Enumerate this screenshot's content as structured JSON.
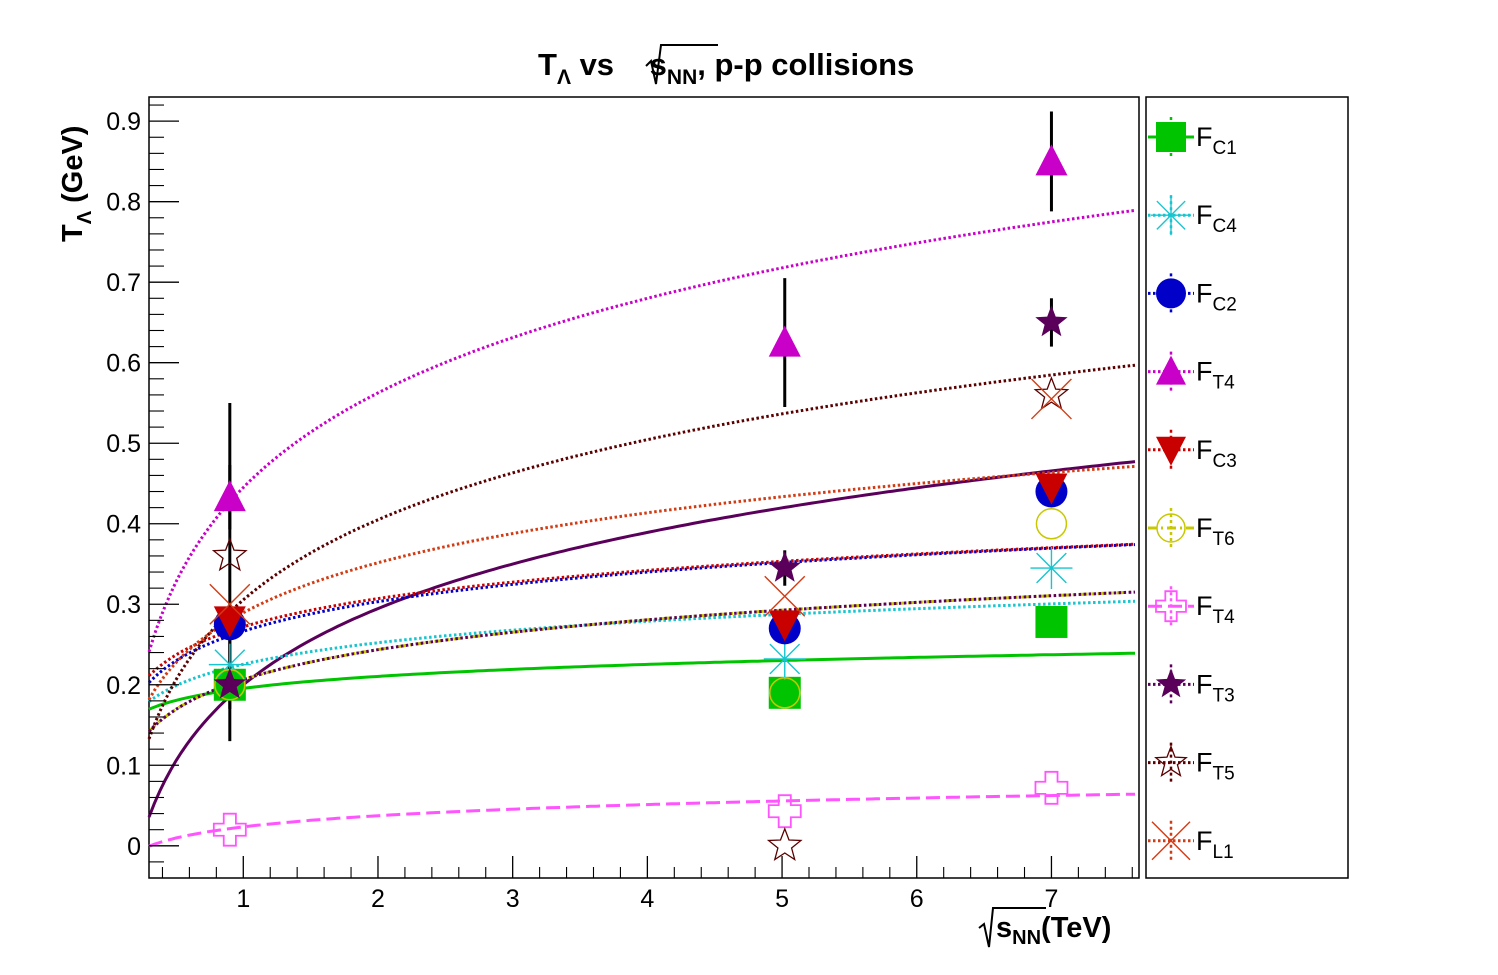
{
  "chart_data": {
    "type": "scatter",
    "title": {
      "main": "T",
      "main_sub": "Λ",
      "mid": " vs ",
      "root_var": "s",
      "root_sub": "NN",
      "tail": ", p-p collisions"
    },
    "xlabel": {
      "root_var": "s",
      "root_sub": "NN",
      "unit": "(TeV)"
    },
    "ylabel": {
      "main": "T",
      "sub": "Λ",
      "unit": " (GeV)"
    },
    "xlim": [
      0.3,
      7.65
    ],
    "ylim": [
      -0.04,
      0.93
    ],
    "x_ticks": [
      "1",
      "2",
      "3",
      "4",
      "5",
      "6",
      "7"
    ],
    "y_ticks": [
      "0",
      "0.1",
      "0.2",
      "0.3",
      "0.4",
      "0.5",
      "0.6",
      "0.7",
      "0.8",
      "0.9"
    ],
    "grid": false,
    "legend_position": "right",
    "series": [
      {
        "label": "F",
        "sub": "C1",
        "marker": "square-filled",
        "color": "#00c400",
        "line_style": "solid",
        "points": [
          [
            0.9,
            0.2
          ],
          [
            5.02,
            0.19
          ],
          [
            7,
            0.278
          ]
        ],
        "fit": {
          "a": 0.1955,
          "b": 0.0215
        }
      },
      {
        "label": "F",
        "sub": "C4",
        "marker": "asterisk",
        "color": "#17c5cf",
        "line_style": "dotted",
        "points": [
          [
            0.9,
            0.225
          ],
          [
            5.02,
            0.232
          ],
          [
            7,
            0.345
          ]
        ],
        "fit": {
          "a": 0.2255,
          "b": 0.0385
        }
      },
      {
        "label": "F",
        "sub": "C2",
        "marker": "circle-filled",
        "color": "#0000c8",
        "line_style": "dotted",
        "points": [
          [
            0.9,
            0.275
          ],
          [
            5.02,
            0.27
          ],
          [
            7,
            0.44
          ]
        ],
        "fit": {
          "a": 0.2665,
          "b": 0.053
        }
      },
      {
        "label": "F",
        "sub": "T4",
        "marker": "triangle-up-filled",
        "color": "#c800c8",
        "line_style": "dotted",
        "points": [
          [
            0.9,
            0.433
          ],
          [
            5.02,
            0.625
          ],
          [
            7,
            0.85
          ]
        ],
        "err": [
          0.04,
          0.08,
          0.062
        ],
        "fit": {
          "a": 0.445,
          "b": 0.1695
        }
      },
      {
        "label": "F",
        "sub": "C3",
        "marker": "triangle-down-filled",
        "color": "#c80000",
        "line_style": "dotted",
        "points": [
          [
            0.9,
            0.28
          ],
          [
            5.02,
            0.275
          ],
          [
            7,
            0.445
          ]
        ],
        "fit": {
          "a": 0.272,
          "b": 0.0505
        }
      },
      {
        "label": "F",
        "sub": "T6",
        "marker": "circle-open",
        "color": "#c8c800",
        "line_style": "dashdot",
        "points": [
          [
            0.9,
            0.2
          ],
          [
            5.02,
            0.19
          ],
          [
            7,
            0.4
          ]
        ],
        "fit": {
          "a": 0.2065,
          "b": 0.0535
        }
      },
      {
        "label": "F",
        "sub": "T4",
        "marker": "cross-open",
        "color": "#ff55ff",
        "line_style": "dashed",
        "points": [
          [
            0.9,
            0.02
          ],
          [
            5.02,
            0.043
          ],
          [
            7,
            0.072
          ]
        ],
        "fit": {
          "a": 0.0235,
          "b": 0.02
        }
      },
      {
        "label": "F",
        "sub": "T3",
        "marker": "star-filled",
        "color": "#5a005a",
        "line_style": "dotted",
        "points": [
          [
            0.9,
            0.2
          ],
          [
            5.02,
            0.345
          ],
          [
            7,
            0.65
          ]
        ],
        "err": [
          0.07,
          0.022,
          0.03
        ],
        "fit": {
          "a": 0.2065,
          "b": 0.0535
        }
      },
      {
        "label": "F",
        "sub": "T5",
        "marker": "star-open",
        "color": "#5a0000",
        "line_style": "dotted",
        "points": [
          [
            0.9,
            0.36
          ],
          [
            5.02,
            0.0
          ],
          [
            7,
            0.56
          ]
        ],
        "err": [
          0.19,
          0.0,
          0.0
        ],
        "fit": {
          "a": 0.3055,
          "b": 0.1435
        }
      },
      {
        "label": "F",
        "sub": "L1",
        "marker": "x-open",
        "color": "#d23c14",
        "line_style": "dotted",
        "points": [
          [
            0.9,
            0.3
          ],
          [
            5.02,
            0.31
          ],
          [
            7,
            0.555
          ]
        ],
        "fit": {
          "a": 0.2895,
          "b": 0.0895
        }
      }
    ],
    "extra_curve": {
      "color": "#5a005a",
      "line_style": "solid",
      "fit": {
        "a": 0.2,
        "b": 0.1365
      }
    }
  }
}
